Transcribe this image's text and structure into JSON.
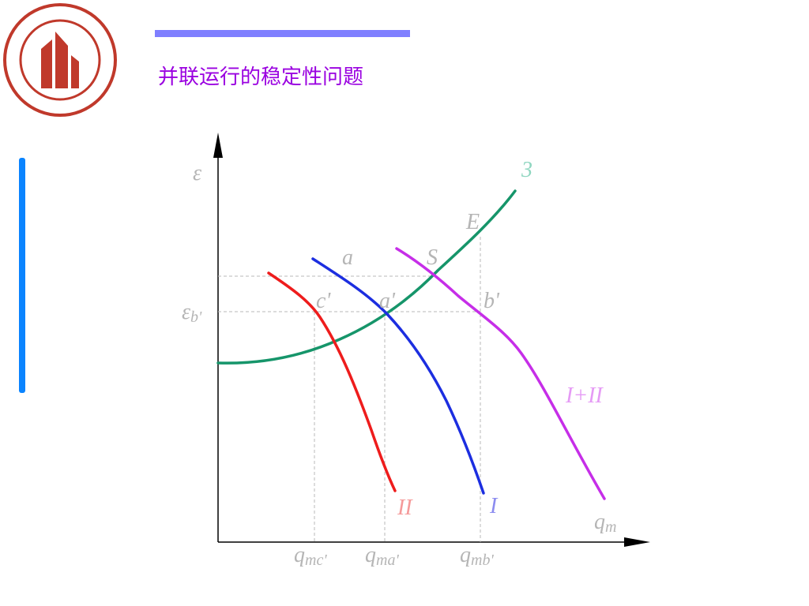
{
  "header": {
    "title": "并联运行的稳定性问题"
  },
  "diagram": {
    "y_axis": "ε",
    "x_axis": {
      "main": "q",
      "sub": "m"
    },
    "curves": {
      "c3": "3",
      "c1": "I",
      "c2": "II",
      "c12": "I+II"
    },
    "points": {
      "E": "E",
      "a": "a",
      "S": "S",
      "c_prime": "c'",
      "a_prime": "a'",
      "b_prime": "b'"
    },
    "y_mark": {
      "main": "ε",
      "sub": "b'"
    },
    "x_marks": [
      {
        "main": "q",
        "sub": "mc'"
      },
      {
        "main": "q",
        "sub": "ma'"
      },
      {
        "main": "q",
        "sub": "mb'"
      }
    ]
  }
}
